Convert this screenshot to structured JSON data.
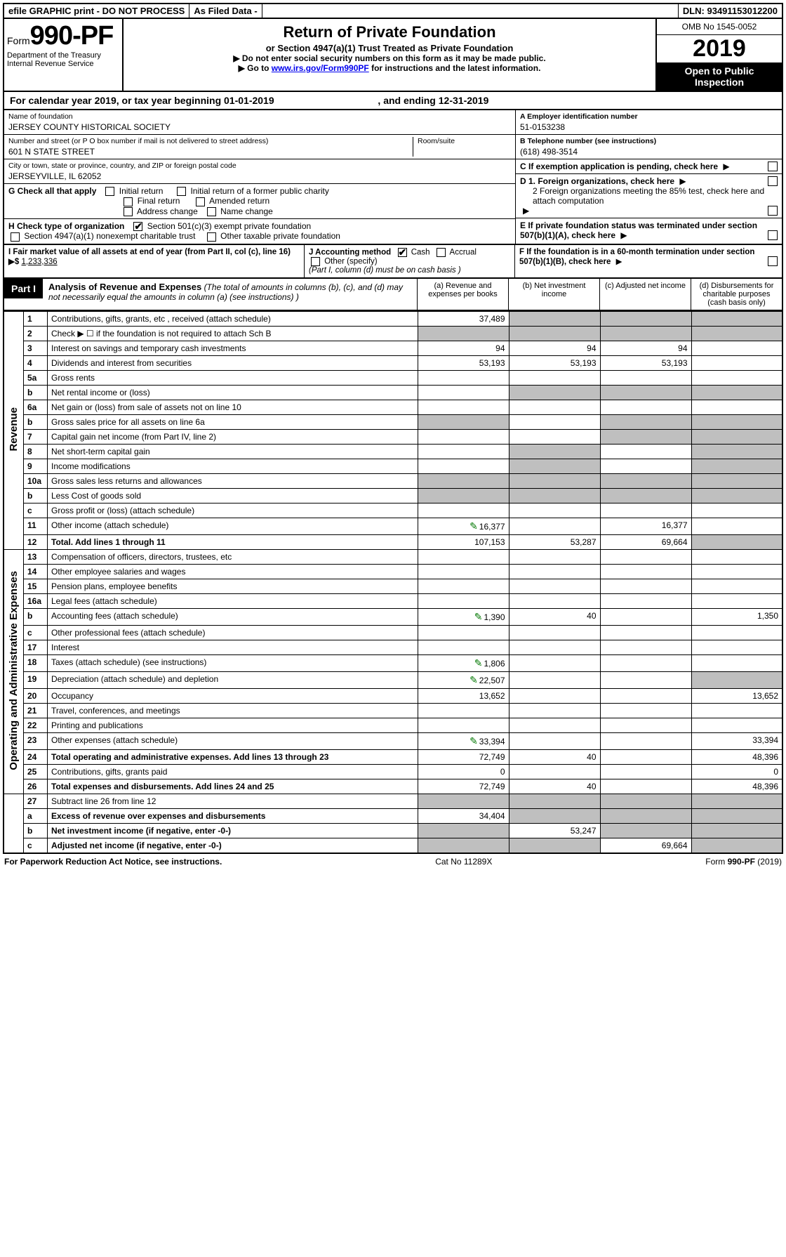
{
  "topbar": {
    "efile": "efile GRAPHIC print - DO NOT PROCESS",
    "asfiled": "As Filed Data -",
    "dln_label": "DLN:",
    "dln": "93491153012200"
  },
  "header": {
    "form_prefix": "Form",
    "form_no": "990-PF",
    "dept1": "Department of the Treasury",
    "dept2": "Internal Revenue Service",
    "title": "Return of Private Foundation",
    "subtitle": "or Section 4947(a)(1) Trust Treated as Private Foundation",
    "note1": "▶ Do not enter social security numbers on this form as it may be made public.",
    "note2_pre": "▶ Go to ",
    "note2_link": "www.irs.gov/Form990PF",
    "note2_post": " for instructions and the latest information.",
    "omb": "OMB No 1545-0052",
    "year": "2019",
    "open1": "Open to Public",
    "open2": "Inspection"
  },
  "calrow": {
    "pre": "For calendar year 2019, or tax year beginning ",
    "begin": "01-01-2019",
    "mid": ", and ending ",
    "end": "12-31-2019"
  },
  "info": {
    "name_lbl": "Name of foundation",
    "name": "JERSEY COUNTY HISTORICAL SOCIETY",
    "addr_lbl": "Number and street (or P O  box number if mail is not delivered to street address)",
    "addr": "601 N STATE STREET",
    "room_lbl": "Room/suite",
    "city_lbl": "City or town, state or province, country, and ZIP or foreign postal code",
    "city": "JERSEYVILLE, IL  62052",
    "a_lbl": "A Employer identification number",
    "a_val": "51-0153238",
    "b_lbl": "B Telephone number (see instructions)",
    "b_val": "(618) 498-3514",
    "c_lbl": "C If exemption application is pending, check here",
    "d1": "D 1. Foreign organizations, check here",
    "d2": "2 Foreign organizations meeting the 85% test, check here and attach computation",
    "e": "E  If private foundation status was terminated under section 507(b)(1)(A), check here",
    "f": "F  If the foundation is in a 60-month termination under section 507(b)(1)(B), check here"
  },
  "g": {
    "lbl": "G Check all that apply",
    "o1": "Initial return",
    "o2": "Initial return of a former public charity",
    "o3": "Final return",
    "o4": "Amended return",
    "o5": "Address change",
    "o6": "Name change"
  },
  "h": {
    "lbl": "H Check type of organization",
    "o1": "Section 501(c)(3) exempt private foundation",
    "o2": "Section 4947(a)(1) nonexempt charitable trust",
    "o3": "Other taxable private foundation"
  },
  "i": {
    "lbl": "I Fair market value of all assets at end of year (from Part II, col  (c), line 16)  ▶$",
    "val": "1,233,336"
  },
  "j": {
    "lbl": "J Accounting method",
    "o1": "Cash",
    "o2": "Accrual",
    "o3": "Other (specify)",
    "note": "(Part I, column (d) must be on cash basis )"
  },
  "part1": {
    "tag": "Part I",
    "title": "Analysis of Revenue and Expenses",
    "note": "(The total of amounts in columns (b), (c), and (d) may not necessarily equal the amounts in column (a) (see instructions) )",
    "ha": "(a)  Revenue and expenses per books",
    "hb": "(b)  Net investment income",
    "hc": "(c)  Adjusted net income",
    "hd": "(d)  Disbursements for charitable purposes (cash basis only)"
  },
  "side": {
    "rev": "Revenue",
    "exp": "Operating and Administrative Expenses"
  },
  "rows": {
    "r1": {
      "n": "1",
      "d": "Contributions, gifts, grants, etc , received (attach schedule)",
      "a": "37,489"
    },
    "r2": {
      "n": "2",
      "d": "Check ▶ ☐ if the foundation is not required to attach Sch B"
    },
    "r3": {
      "n": "3",
      "d": "Interest on savings and temporary cash investments",
      "a": "94",
      "b": "94",
      "c": "94"
    },
    "r4": {
      "n": "4",
      "d": "Dividends and interest from securities",
      "a": "53,193",
      "b": "53,193",
      "c": "53,193"
    },
    "r5a": {
      "n": "5a",
      "d": "Gross rents"
    },
    "r5b": {
      "n": "b",
      "d": "Net rental income or (loss)"
    },
    "r6a": {
      "n": "6a",
      "d": "Net gain or (loss) from sale of assets not on line 10"
    },
    "r6b": {
      "n": "b",
      "d": "Gross sales price for all assets on line 6a"
    },
    "r7": {
      "n": "7",
      "d": "Capital gain net income (from Part IV, line 2)"
    },
    "r8": {
      "n": "8",
      "d": "Net short-term capital gain"
    },
    "r9": {
      "n": "9",
      "d": "Income modifications"
    },
    "r10a": {
      "n": "10a",
      "d": "Gross sales less returns and allowances"
    },
    "r10b": {
      "n": "b",
      "d": "Less  Cost of goods sold"
    },
    "r10c": {
      "n": "c",
      "d": "Gross profit or (loss) (attach schedule)"
    },
    "r11": {
      "n": "11",
      "d": "Other income (attach schedule)",
      "a": "16,377",
      "c": "16,377",
      "icon": true
    },
    "r12": {
      "n": "12",
      "d": "Total. Add lines 1 through 11",
      "a": "107,153",
      "b": "53,287",
      "c": "69,664",
      "bold": true
    },
    "r13": {
      "n": "13",
      "d": "Compensation of officers, directors, trustees, etc"
    },
    "r14": {
      "n": "14",
      "d": "Other employee salaries and wages"
    },
    "r15": {
      "n": "15",
      "d": "Pension plans, employee benefits"
    },
    "r16a": {
      "n": "16a",
      "d": "Legal fees (attach schedule)"
    },
    "r16b": {
      "n": "b",
      "d": "Accounting fees (attach schedule)",
      "a": "1,390",
      "b": "40",
      "d_": "1,350",
      "icon": true
    },
    "r16c": {
      "n": "c",
      "d": "Other professional fees (attach schedule)"
    },
    "r17": {
      "n": "17",
      "d": "Interest"
    },
    "r18": {
      "n": "18",
      "d": "Taxes (attach schedule) (see instructions)",
      "a": "1,806",
      "icon": true
    },
    "r19": {
      "n": "19",
      "d": "Depreciation (attach schedule) and depletion",
      "a": "22,507",
      "icon": true
    },
    "r20": {
      "n": "20",
      "d": "Occupancy",
      "a": "13,652",
      "d_": "13,652"
    },
    "r21": {
      "n": "21",
      "d": "Travel, conferences, and meetings"
    },
    "r22": {
      "n": "22",
      "d": "Printing and publications"
    },
    "r23": {
      "n": "23",
      "d": "Other expenses (attach schedule)",
      "a": "33,394",
      "d_": "33,394",
      "icon": true
    },
    "r24": {
      "n": "24",
      "d": "Total operating and administrative expenses. Add lines 13 through 23",
      "a": "72,749",
      "b": "40",
      "d_": "48,396",
      "bold": true
    },
    "r25": {
      "n": "25",
      "d": "Contributions, gifts, grants paid",
      "a": "0",
      "d_": "0"
    },
    "r26": {
      "n": "26",
      "d": "Total expenses and disbursements. Add lines 24 and 25",
      "a": "72,749",
      "b": "40",
      "d_": "48,396",
      "bold": true
    },
    "r27": {
      "n": "27",
      "d": "Subtract line 26 from line 12"
    },
    "r27a": {
      "n": "a",
      "d": "Excess of revenue over expenses and disbursements",
      "a": "34,404",
      "bold": true
    },
    "r27b": {
      "n": "b",
      "d": "Net investment income (if negative, enter -0-)",
      "b": "53,247",
      "bold": true
    },
    "r27c": {
      "n": "c",
      "d": "Adjusted net income (if negative, enter -0-)",
      "c": "69,664",
      "bold": true
    }
  },
  "foot": {
    "left": "For Paperwork Reduction Act Notice, see instructions.",
    "mid": "Cat  No  11289X",
    "right_pre": "Form ",
    "right_form": "990-PF",
    "right_post": " (2019)"
  },
  "colors": {
    "grey": "#bfbfbf",
    "link": "#0000ee",
    "icon": "#007700"
  }
}
